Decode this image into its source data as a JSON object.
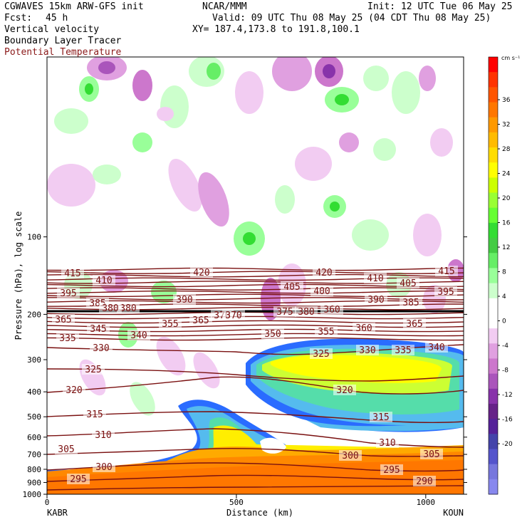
{
  "header": {
    "model": "CGWAVES 15km ARW-GFS init",
    "fcst_label": "Fcst:",
    "fcst_value": "45 h",
    "center": "NCAR/MMM",
    "init": "Init: 12 UTC Tue 06 May 25",
    "valid": "Valid: 09 UTC Thu 08 May 25 (04 CDT Thu 08 May 25)",
    "xy": "XY= 187.4,173.8 to 191.8,100.1",
    "fields": [
      "Vertical velocity",
      "Boundary Layer Tracer",
      "Potential Temperature"
    ],
    "field_colors": [
      "#000000",
      "#000000",
      "#8b1a1a"
    ]
  },
  "chart_data": {
    "type": "cross-section",
    "xlabel": "Distance (km)",
    "ylabel": "Pressure (hPa), log scale",
    "x_range": [
      0,
      1100
    ],
    "x_ticks": [
      0,
      500,
      1000
    ],
    "y_range_hpa": [
      1000,
      20
    ],
    "y_scale": "log",
    "y_ticks": [
      100,
      200,
      300,
      400,
      500,
      600,
      700,
      800,
      900,
      1000
    ],
    "left_station": "KABR",
    "right_station": "KOUN",
    "colorbar": {
      "units": "cm s⁻¹",
      "labels": [
        "36",
        "32",
        "28",
        "24",
        "20",
        "16",
        "12",
        "8",
        "4",
        "0",
        "-4",
        "-8",
        "-12",
        "-16",
        "-20"
      ],
      "colors": [
        "#ff0000",
        "#ff3300",
        "#ff5500",
        "#ff7700",
        "#ff9900",
        "#ffbb00",
        "#ffdd00",
        "#ffff00",
        "#ccff00",
        "#99ff33",
        "#66ff33",
        "#33dd33",
        "#44cc44",
        "#66ee66",
        "#99ff99",
        "#ccffcc",
        "#ffffff",
        "#ffffff",
        "#f2ccf2",
        "#e0a0e0",
        "#cc77cc",
        "#aa55bb",
        "#8833aa",
        "#662288",
        "#552299",
        "#4444aa",
        "#5555cc",
        "#7777dd",
        "#8888ee"
      ]
    },
    "theta_contours": [
      {
        "value": 295,
        "label": "295"
      },
      {
        "value": 290,
        "label": "290"
      },
      {
        "value": 300,
        "label": "300"
      },
      {
        "value": 305,
        "label": "305"
      },
      {
        "value": 310,
        "label": "310"
      },
      {
        "value": 315,
        "label": "315"
      },
      {
        "value": 320,
        "label": "320"
      },
      {
        "value": 325,
        "label": "325"
      },
      {
        "value": 330,
        "label": "330"
      },
      {
        "value": 335,
        "label": "335"
      },
      {
        "value": 340,
        "label": "340"
      },
      {
        "value": 345,
        "label": "345"
      },
      {
        "value": 350,
        "label": "350"
      },
      {
        "value": 355,
        "label": "355"
      },
      {
        "value": 360,
        "label": "360"
      },
      {
        "value": 365,
        "label": "365"
      },
      {
        "value": 370,
        "label": "370"
      },
      {
        "value": 375,
        "label": "375"
      },
      {
        "value": 380,
        "label": "380"
      },
      {
        "value": 385,
        "label": "385"
      },
      {
        "value": 390,
        "label": "390"
      },
      {
        "value": 395,
        "label": "395"
      },
      {
        "value": 400,
        "label": "400"
      },
      {
        "value": 405,
        "label": "405"
      },
      {
        "value": 410,
        "label": "410"
      },
      {
        "value": 415,
        "label": "415"
      },
      {
        "value": 420,
        "label": "420"
      }
    ],
    "theta_label_texts": [
      "415",
      "410",
      "420",
      "420",
      "410",
      "415",
      "395",
      "385",
      "390",
      "405",
      "400",
      "390",
      "405",
      "385",
      "395",
      "380",
      "380",
      "375",
      "380",
      "360",
      "365",
      "370",
      "370",
      "345",
      "355",
      "365",
      "340",
      "350",
      "355",
      "360",
      "365",
      "335",
      "330",
      "325",
      "330",
      "335",
      "340",
      "325",
      "320",
      "320",
      "315",
      "315",
      "310",
      "310",
      "305",
      "305",
      "300",
      "300",
      "295",
      "295",
      "290"
    ]
  }
}
